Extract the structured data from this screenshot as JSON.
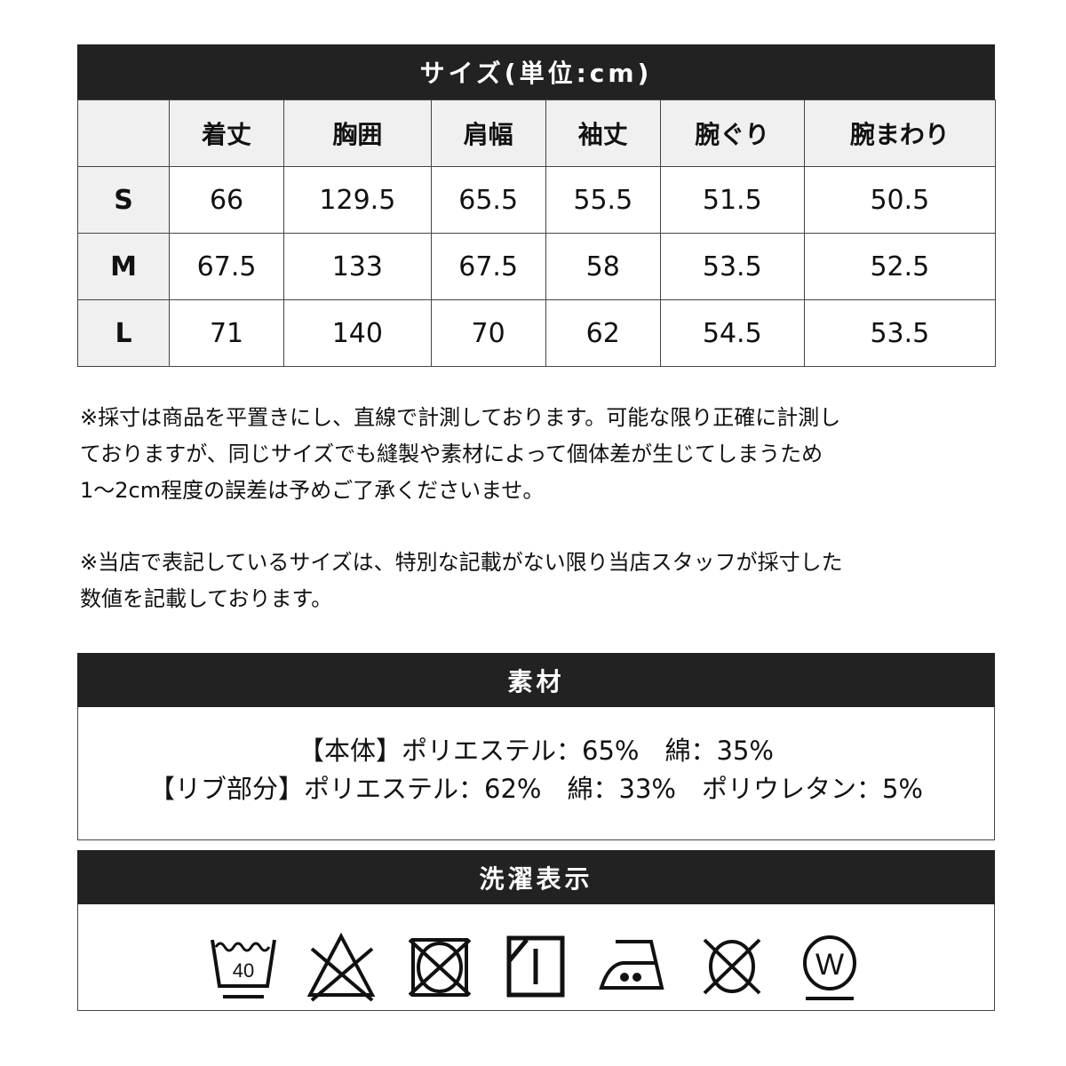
{
  "size_table": {
    "title": "サイズ(単位:cm)",
    "headers": [
      "",
      "着丈",
      "胸囲",
      "肩幅",
      "袖丈",
      "腕ぐり",
      "腕まわり"
    ],
    "rows": [
      [
        "S",
        "66",
        "129.5",
        "65.5",
        "55.5",
        "51.5",
        "50.5"
      ],
      [
        "M",
        "67.5",
        "133",
        "67.5",
        "58",
        "53.5",
        "52.5"
      ],
      [
        "L",
        "71",
        "140",
        "70",
        "62",
        "54.5",
        "53.5"
      ]
    ]
  },
  "notes": [
    "※採寸は商品を平置きにし、直線で計測しております。可能な限り正確に計測し",
    "ておりますが、同じサイズでも縫製や素材によって個体差が生じてしまうため",
    "1〜2cm程度の誤差は予めご了承くださいませ。",
    "※当店で表記しているサイズは、特別な記載がない限り当店スタッフが採寸した",
    "数値を記載しております。"
  ],
  "material": {
    "title": "素材",
    "lines": [
      "【本体】ポリエステル：65%　綿：35%",
      "【リブ部分】ポリエステル：62%　綿：33%　ポリウレタン：5%"
    ]
  },
  "care": {
    "title": "洗濯表示",
    "icons": [
      "wash-40-gentle-icon",
      "no-bleach-icon",
      "no-tumble-dry-icon",
      "line-dry-shade-icon",
      "iron-medium-icon",
      "no-dry-clean-icon",
      "wet-clean-gentle-icon"
    ],
    "wash_temp": "40",
    "wet_clean_letter": "W"
  }
}
